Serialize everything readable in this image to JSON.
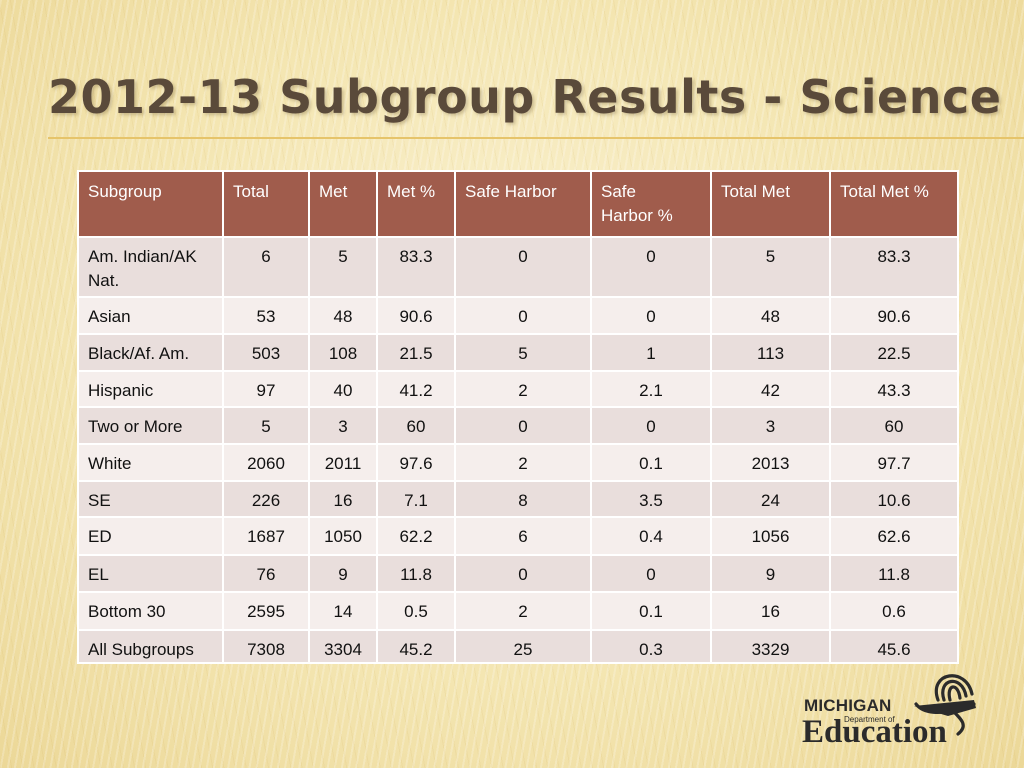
{
  "title": "2012-13 Subgroup Results - Science",
  "table": {
    "headers": [
      "Subgroup",
      "Total",
      "Met",
      "Met %",
      "Safe Harbor",
      "Safe Harbor %",
      "Total Met",
      "Total Met %"
    ],
    "rows": [
      [
        "Am. Indian/AK Nat.",
        "6",
        "5",
        "83.3",
        "0",
        "0",
        "5",
        "83.3"
      ],
      [
        "Asian",
        "53",
        "48",
        "90.6",
        "0",
        "0",
        "48",
        "90.6"
      ],
      [
        "Black/Af. Am.",
        "503",
        "108",
        "21.5",
        "5",
        "1",
        "113",
        "22.5"
      ],
      [
        "Hispanic",
        "97",
        "40",
        "41.2",
        "2",
        "2.1",
        "42",
        "43.3"
      ],
      [
        "Two or More",
        "5",
        "3",
        "60",
        "0",
        "0",
        "3",
        "60"
      ],
      [
        "White",
        "2060",
        "2011",
        "97.6",
        "2",
        "0.1",
        "2013",
        "97.7"
      ],
      [
        "SE",
        "226",
        "16",
        "7.1",
        "8",
        "3.5",
        "24",
        "10.6"
      ],
      [
        "ED",
        "1687",
        "1050",
        "62.2",
        "6",
        "0.4",
        "1056",
        "62.6"
      ],
      [
        "EL",
        "76",
        "9",
        "11.8",
        "0",
        "0",
        "9",
        "11.8"
      ],
      [
        "Bottom 30",
        "2595",
        "14",
        "0.5",
        "2",
        "0.1",
        "16",
        "0.6"
      ],
      [
        "All Subgroups",
        "7308",
        "3304",
        "45.2",
        "25",
        "0.3",
        "3329",
        "45.6"
      ]
    ]
  },
  "logo": {
    "line1": "MICHIGAN",
    "line2": "Department of",
    "line3": "Education",
    "icon": "michigan-education-emblem-icon"
  },
  "colors": {
    "header_bg": "#a05c4c",
    "row_odd": "#e9dedc",
    "row_even": "#f5eeec",
    "title": "#5a4a3a",
    "accent_rule": "#e6c46a"
  }
}
